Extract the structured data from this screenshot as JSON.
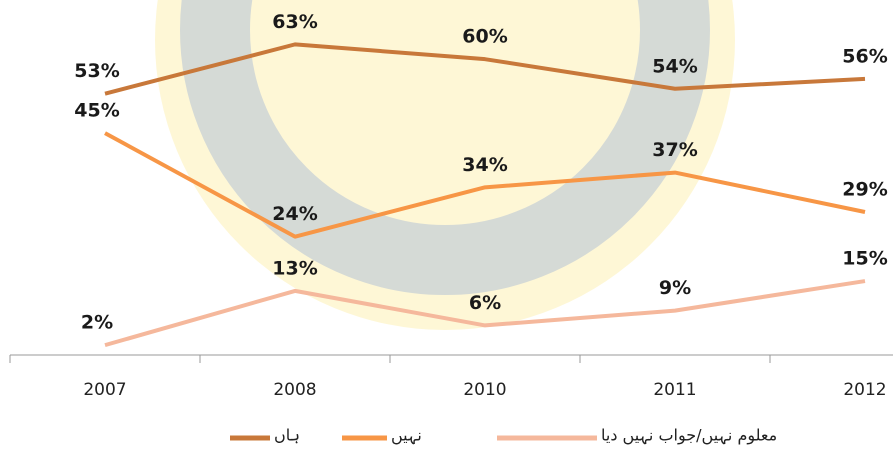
{
  "chart_data": {
    "type": "line",
    "categories": [
      "2007",
      "2008",
      "2010",
      "2011",
      "2012"
    ],
    "series": [
      {
        "name": "ہاں",
        "color": "#c8783a",
        "values": [
          53,
          63,
          60,
          54,
          56
        ],
        "value_labels": [
          "53%",
          "63%",
          "60%",
          "54%",
          "56%"
        ]
      },
      {
        "name": "نہیں",
        "color": "#f79646",
        "values": [
          45,
          24,
          34,
          37,
          29
        ],
        "value_labels": [
          "45%",
          "24%",
          "34%",
          "37%",
          "29%"
        ]
      },
      {
        "name": "معلوم نہیں/جواب نہیں دیا",
        "color": "#f5b89c",
        "values": [
          2,
          13,
          6,
          9,
          15
        ],
        "value_labels": [
          "2%",
          "13%",
          "6%",
          "9%",
          "15%"
        ]
      }
    ],
    "ylim": [
      0,
      72
    ]
  }
}
